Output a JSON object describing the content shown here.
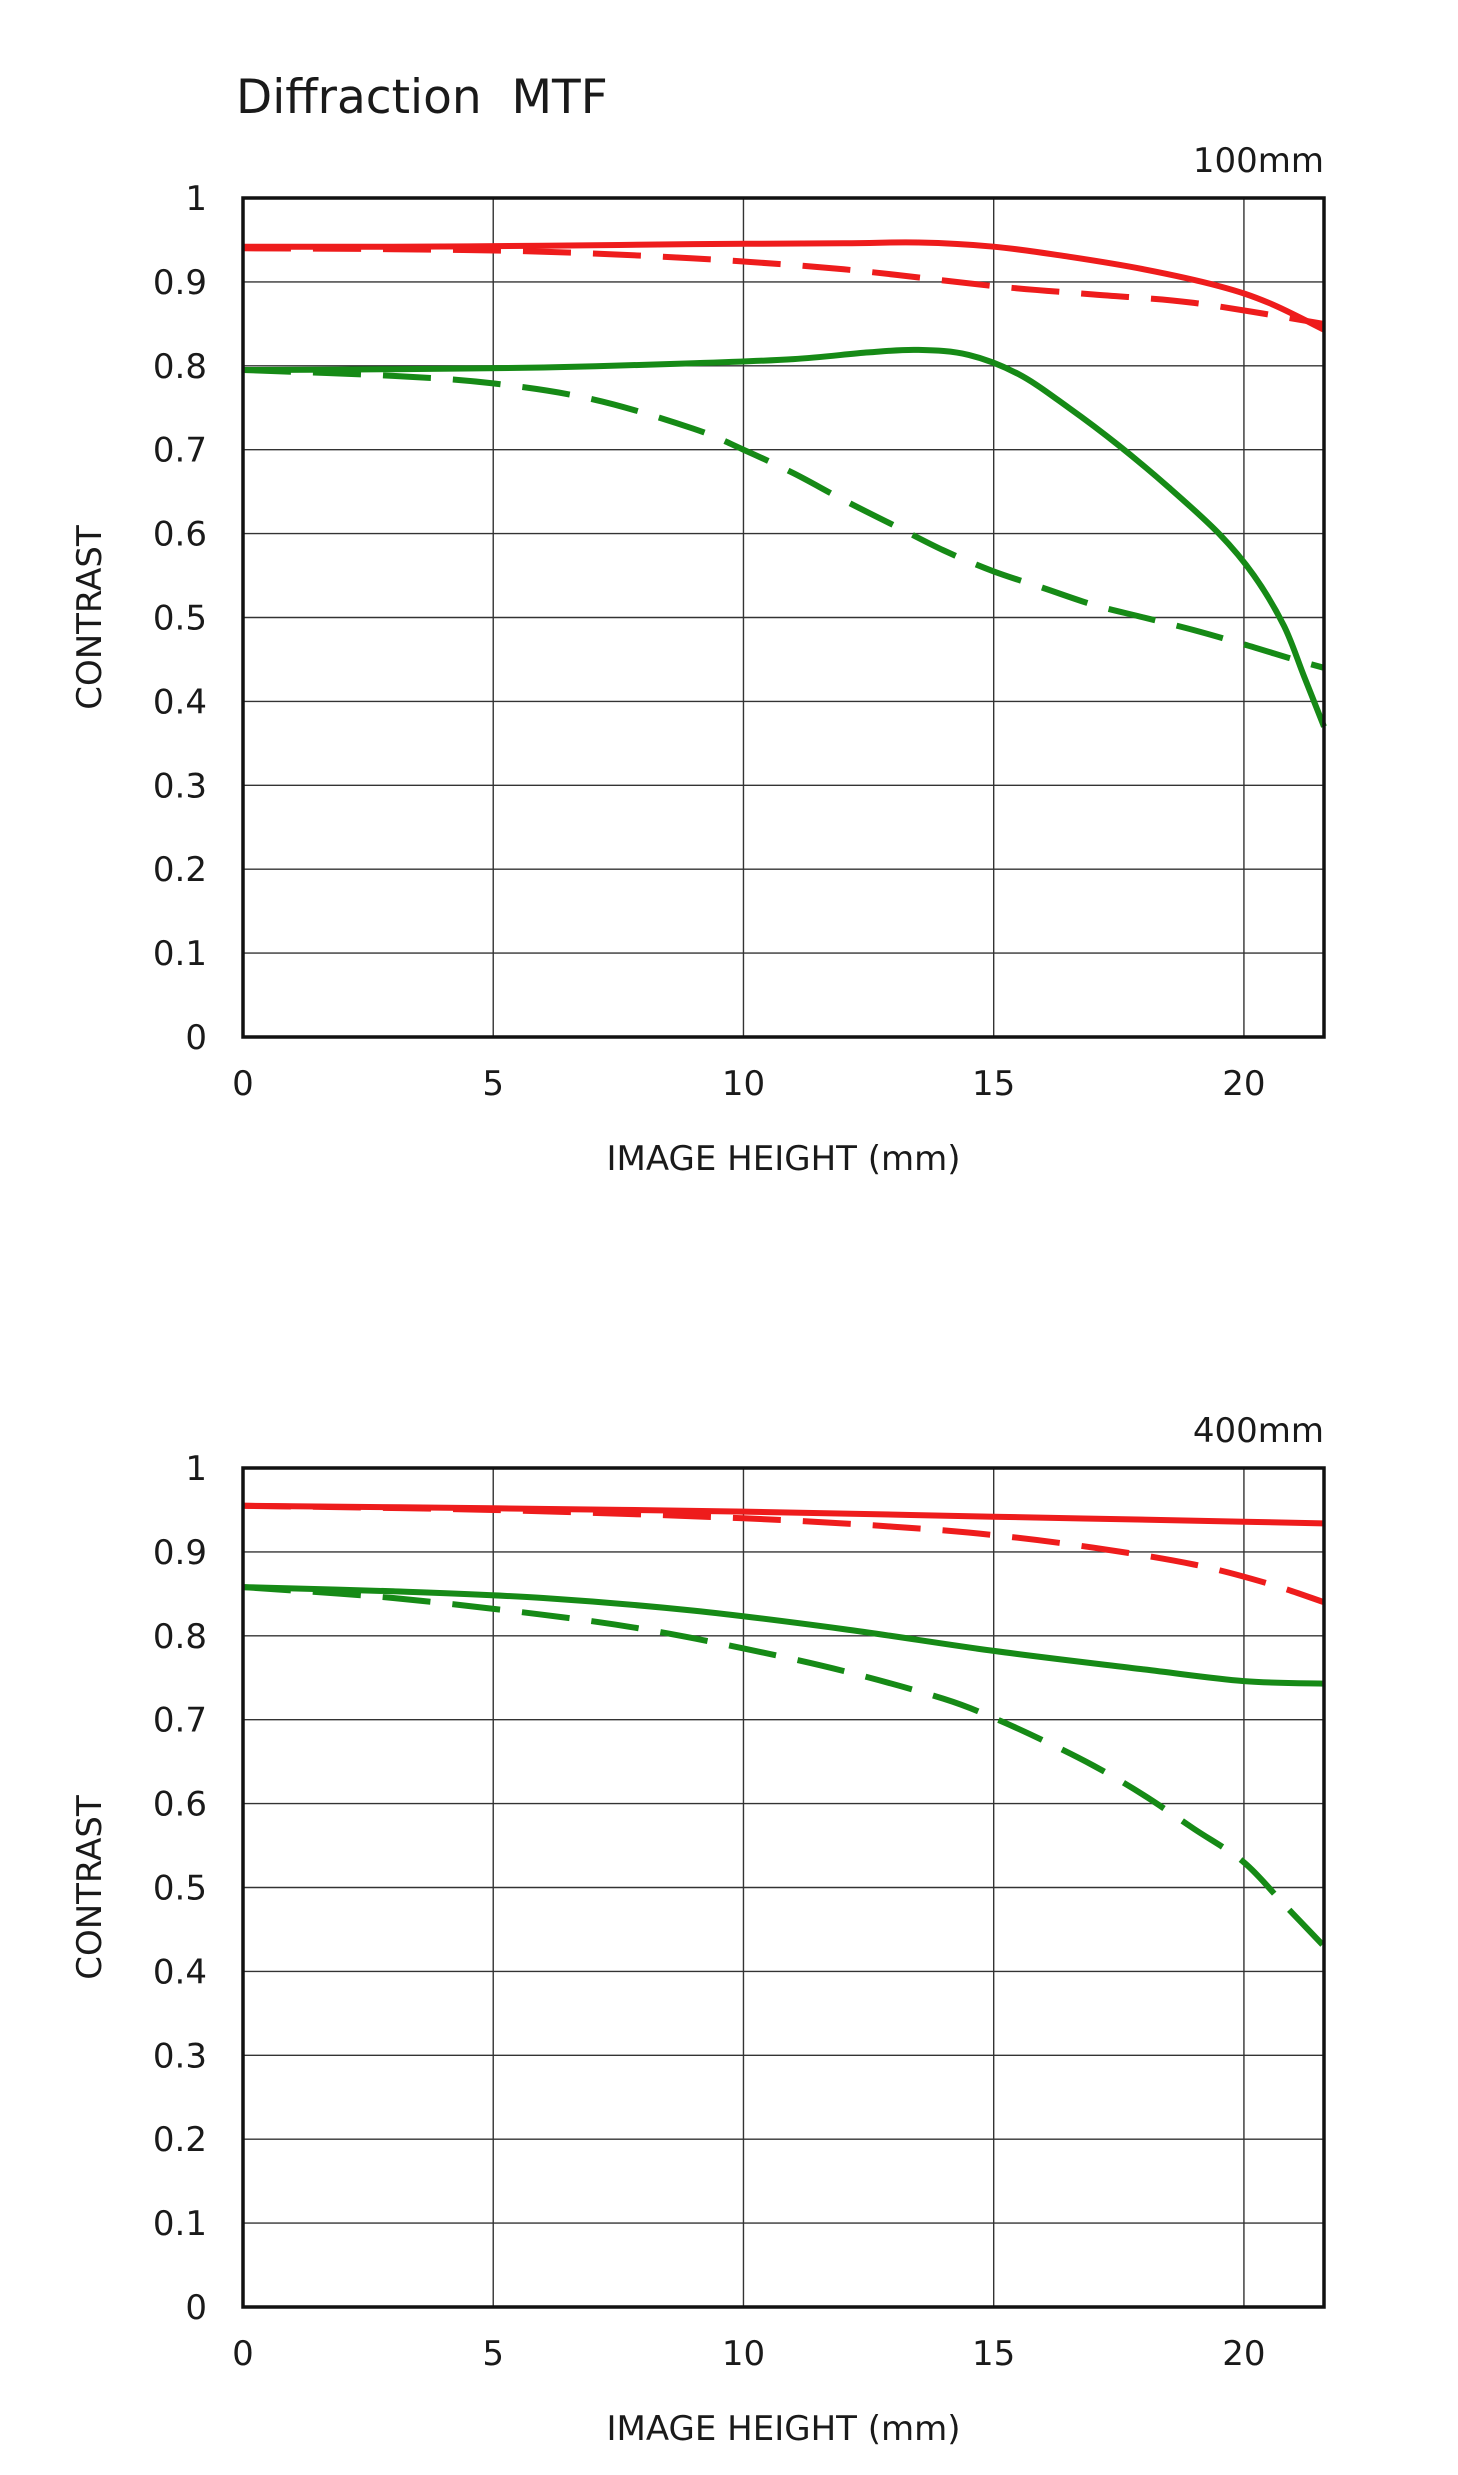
{
  "title": "Diffraction  MTF",
  "colors": {
    "sagittal_or_low": "#ee1c1c",
    "high": "#168a16",
    "grid": "#333333"
  },
  "chart_data": [
    {
      "type": "line",
      "focal_length_label": "100mm",
      "xlabel": "IMAGE HEIGHT (mm)",
      "ylabel": "CONTRAST",
      "xlim": [
        0,
        21.6
      ],
      "ylim": [
        0,
        1
      ],
      "xticks": [
        0,
        5,
        10,
        15,
        20
      ],
      "yticks": [
        0,
        0.1,
        0.2,
        0.3,
        0.4,
        0.5,
        0.6,
        0.7,
        0.8,
        0.9,
        1
      ],
      "ytick_labels": [
        "0",
        "0.1",
        "0.2",
        "0.3",
        "0.4",
        "0.5",
        "0.6",
        "0.7",
        "0.8",
        "0.9",
        "1"
      ],
      "grid": true,
      "series": [
        {
          "color": "#ee1c1c",
          "style": "solid",
          "x": [
            0,
            3,
            6,
            9,
            12,
            13.5,
            15,
            16.5,
            18,
            19.5,
            20.5,
            21.6
          ],
          "y": [
            0.942,
            0.942,
            0.943,
            0.945,
            0.946,
            0.947,
            0.942,
            0.93,
            0.915,
            0.895,
            0.875,
            0.843
          ]
        },
        {
          "color": "#ee1c1c",
          "style": "dashed",
          "x": [
            0,
            3,
            6,
            9,
            12,
            15,
            17,
            19,
            21.6
          ],
          "y": [
            0.94,
            0.939,
            0.936,
            0.928,
            0.915,
            0.895,
            0.885,
            0.875,
            0.85
          ]
        },
        {
          "color": "#168a16",
          "style": "solid",
          "x": [
            0,
            3,
            6,
            9,
            11,
            12.5,
            13.5,
            14.5,
            15.5,
            16.5,
            17.5,
            18.5,
            19.5,
            20.2,
            20.8,
            21.2,
            21.6
          ],
          "y": [
            0.795,
            0.796,
            0.798,
            0.803,
            0.808,
            0.816,
            0.819,
            0.813,
            0.79,
            0.75,
            0.705,
            0.655,
            0.6,
            0.55,
            0.49,
            0.43,
            0.37
          ]
        },
        {
          "color": "#168a16",
          "style": "dashed",
          "x": [
            0,
            3,
            5,
            7,
            9,
            10,
            11,
            12,
            13,
            14,
            15,
            16,
            17,
            18,
            19,
            20,
            21,
            21.6
          ],
          "y": [
            0.795,
            0.788,
            0.779,
            0.76,
            0.725,
            0.7,
            0.672,
            0.64,
            0.61,
            0.58,
            0.555,
            0.535,
            0.515,
            0.5,
            0.485,
            0.468,
            0.45,
            0.44
          ]
        }
      ]
    },
    {
      "type": "line",
      "focal_length_label": "400mm",
      "xlabel": "IMAGE HEIGHT (mm)",
      "ylabel": "CONTRAST",
      "xlim": [
        0,
        21.6
      ],
      "ylim": [
        0,
        1
      ],
      "xticks": [
        0,
        5,
        10,
        15,
        20
      ],
      "yticks": [
        0,
        0.1,
        0.2,
        0.3,
        0.4,
        0.5,
        0.6,
        0.7,
        0.8,
        0.9,
        1
      ],
      "ytick_labels": [
        "0",
        "0.1",
        "0.2",
        "0.3",
        "0.4",
        "0.5",
        "0.6",
        "0.7",
        "0.8",
        "0.9",
        "1"
      ],
      "grid": true,
      "series": [
        {
          "color": "#ee1c1c",
          "style": "solid",
          "x": [
            0,
            5,
            10,
            15,
            20,
            21.6
          ],
          "y": [
            0.955,
            0.952,
            0.948,
            0.942,
            0.936,
            0.934
          ]
        },
        {
          "color": "#ee1c1c",
          "style": "dashed",
          "x": [
            0,
            5,
            10,
            13,
            15,
            17,
            19,
            20.5,
            21.6
          ],
          "y": [
            0.955,
            0.95,
            0.94,
            0.93,
            0.92,
            0.905,
            0.885,
            0.862,
            0.84
          ]
        },
        {
          "color": "#168a16",
          "style": "solid",
          "x": [
            0,
            3,
            6,
            9,
            12,
            15,
            18,
            20,
            21.6
          ],
          "y": [
            0.858,
            0.853,
            0.845,
            0.83,
            0.808,
            0.782,
            0.76,
            0.746,
            0.743
          ]
        },
        {
          "color": "#168a16",
          "style": "dashed",
          "x": [
            0,
            3,
            6,
            8,
            10,
            12,
            14,
            15,
            16,
            17,
            18,
            19,
            20,
            20.8,
            21.6
          ],
          "y": [
            0.858,
            0.845,
            0.825,
            0.808,
            0.785,
            0.758,
            0.725,
            0.702,
            0.675,
            0.645,
            0.61,
            0.57,
            0.53,
            0.48,
            0.43
          ]
        }
      ]
    }
  ]
}
